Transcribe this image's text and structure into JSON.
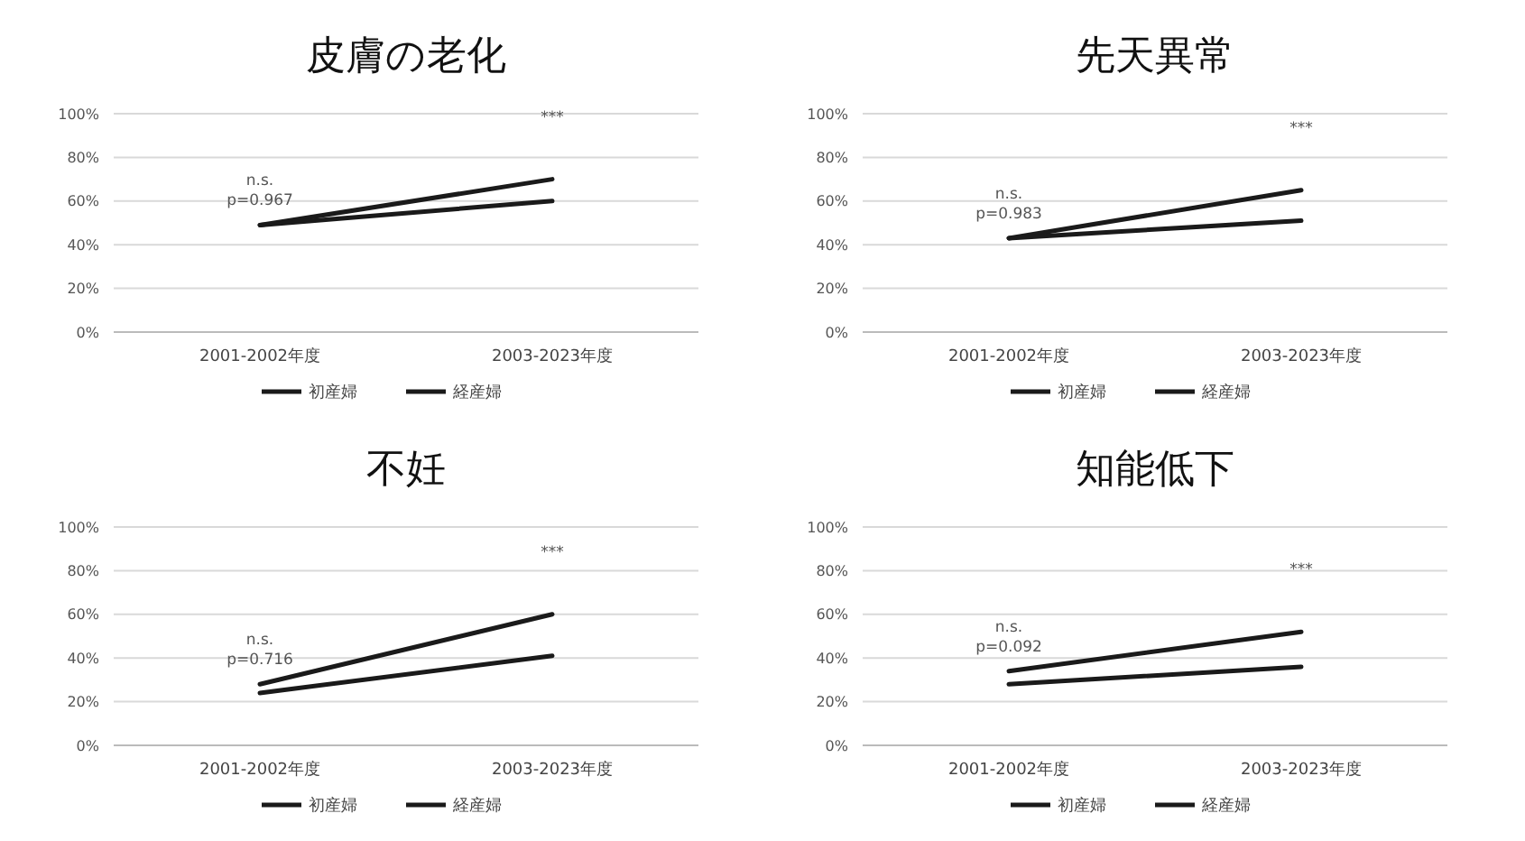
{
  "chart_data": [
    {
      "type": "line",
      "title": "皮膚の老化",
      "categories": [
        "2001-2002年度",
        "2003-2023年度"
      ],
      "series": [
        {
          "name": "初産婦",
          "color": "#1a1a1a",
          "values": [
            49,
            70
          ]
        },
        {
          "name": "経産婦",
          "color": "#1a1a1a",
          "values": [
            49,
            60
          ]
        }
      ],
      "ylim": [
        0,
        100
      ],
      "yticks": [
        {
          "value": 0,
          "label": "0%"
        },
        {
          "value": 20,
          "label": "20%"
        },
        {
          "value": 40,
          "label": "40%"
        },
        {
          "value": 60,
          "label": "60%"
        },
        {
          "value": 80,
          "label": "80%"
        },
        {
          "value": 100,
          "label": "100%"
        }
      ],
      "grid": "y",
      "legend": "bottom",
      "annotations": [
        "n.s.",
        "p=0.967",
        "***"
      ]
    },
    {
      "type": "line",
      "title": "先天異常",
      "categories": [
        "2001-2002年度",
        "2003-2023年度"
      ],
      "series": [
        {
          "name": "初産婦",
          "color": "#1a1a1a",
          "values": [
            43,
            65
          ]
        },
        {
          "name": "経産婦",
          "color": "#1a1a1a",
          "values": [
            43,
            51
          ]
        }
      ],
      "ylim": [
        0,
        100
      ],
      "yticks": [
        {
          "value": 0,
          "label": "0%"
        },
        {
          "value": 20,
          "label": "20%"
        },
        {
          "value": 40,
          "label": "40%"
        },
        {
          "value": 60,
          "label": "60%"
        },
        {
          "value": 80,
          "label": "80%"
        },
        {
          "value": 100,
          "label": "100%"
        }
      ],
      "grid": "y",
      "legend": "bottom",
      "annotations": [
        "n.s.",
        "p=0.983",
        "***"
      ]
    },
    {
      "type": "line",
      "title": "不妊",
      "categories": [
        "2001-2002年度",
        "2003-2023年度"
      ],
      "series": [
        {
          "name": "初産婦",
          "color": "#1a1a1a",
          "values": [
            28,
            60
          ]
        },
        {
          "name": "経産婦",
          "color": "#1a1a1a",
          "values": [
            24,
            41
          ]
        }
      ],
      "ylim": [
        0,
        100
      ],
      "yticks": [
        {
          "value": 0,
          "label": "0%"
        },
        {
          "value": 20,
          "label": "20%"
        },
        {
          "value": 40,
          "label": "40%"
        },
        {
          "value": 60,
          "label": "60%"
        },
        {
          "value": 80,
          "label": "80%"
        },
        {
          "value": 100,
          "label": "100%"
        }
      ],
      "grid": "y",
      "legend": "bottom",
      "annotations": [
        "n.s.",
        "p=0.716",
        "***"
      ]
    },
    {
      "type": "line",
      "title": "知能低下",
      "categories": [
        "2001-2002年度",
        "2003-2023年度"
      ],
      "series": [
        {
          "name": "初産婦",
          "color": "#1a1a1a",
          "values": [
            34,
            52
          ]
        },
        {
          "name": "経産婦",
          "color": "#1a1a1a",
          "values": [
            28,
            36
          ]
        }
      ],
      "ylim": [
        0,
        100
      ],
      "yticks": [
        {
          "value": 0,
          "label": "0%"
        },
        {
          "value": 20,
          "label": "20%"
        },
        {
          "value": 40,
          "label": "40%"
        },
        {
          "value": 60,
          "label": "60%"
        },
        {
          "value": 80,
          "label": "80%"
        },
        {
          "value": 100,
          "label": "100%"
        }
      ],
      "grid": "y",
      "legend": "bottom",
      "annotations": [
        "n.s.",
        "p=0.092",
        "***"
      ]
    }
  ]
}
